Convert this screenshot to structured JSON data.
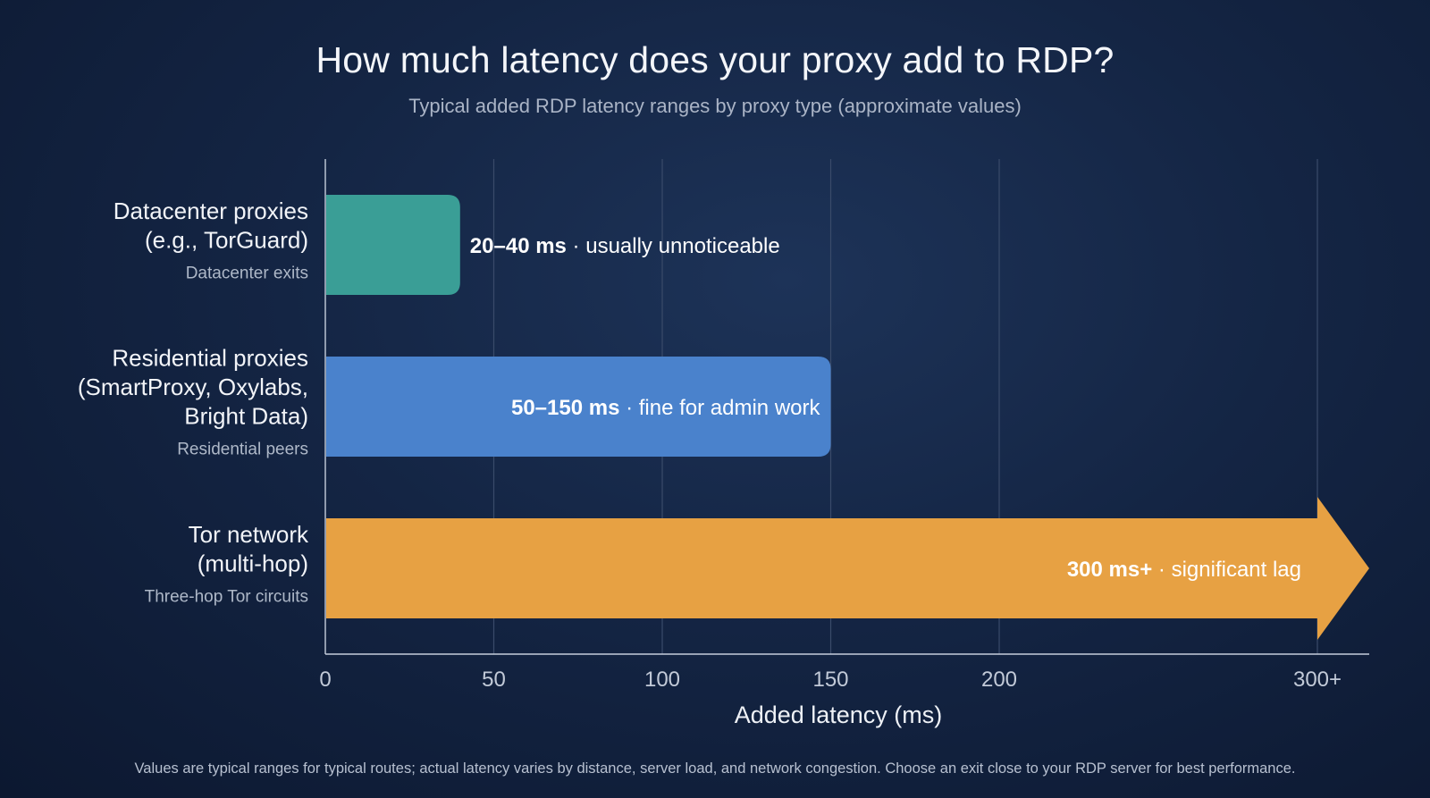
{
  "title": "How much latency does your proxy add to RDP?",
  "subtitle": "Typical added RDP latency ranges by proxy type (approximate values)",
  "footnote": "Values are typical ranges for typical routes; actual latency varies by distance, server load, and network congestion. Choose an exit close to your RDP server for best performance.",
  "chart_data": {
    "type": "bar",
    "orientation": "horizontal",
    "xlabel": "Added latency (ms)",
    "ylabel": "",
    "xlim": [
      0,
      300
    ],
    "x_ticks": [
      {
        "value": 0,
        "label": "0"
      },
      {
        "value": 50,
        "label": "50"
      },
      {
        "value": 100,
        "label": "100"
      },
      {
        "value": 150,
        "label": "150"
      },
      {
        "value": 200,
        "label": "200"
      },
      {
        "value": 300,
        "label": "300+"
      }
    ],
    "grid": "vertical",
    "categories": [
      {
        "name_lines": [
          "Datacenter proxies",
          "(e.g., TorGuard)"
        ],
        "sub": "Datacenter exits",
        "range": [
          20,
          40
        ],
        "value_label": "20–40 ms",
        "note": " · usually unnoticeable",
        "color": "#3a9e96",
        "open_ended": false
      },
      {
        "name_lines": [
          "Residential proxies",
          "(SmartProxy, Oxylabs,",
          "Bright Data)"
        ],
        "sub": "Residential peers",
        "range": [
          50,
          150
        ],
        "value_label": "50–150 ms",
        "note": " · fine for admin work",
        "color": "#4a82cc",
        "open_ended": false
      },
      {
        "name_lines": [
          "Tor network",
          "(multi-hop)"
        ],
        "sub": "Three-hop Tor circuits",
        "range": [
          300,
          null
        ],
        "value_label": "300 ms+",
        "note": " · significant lag",
        "color": "#e7a143",
        "open_ended": true
      }
    ]
  }
}
